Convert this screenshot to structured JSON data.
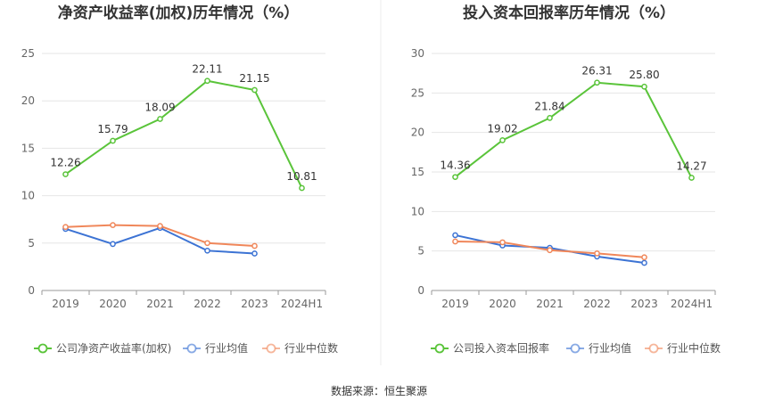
{
  "chart_data": [
    {
      "type": "line",
      "title": "净资产收益率(加权)历年情况（%）",
      "categories": [
        "2019",
        "2020",
        "2021",
        "2022",
        "2023",
        "2024H1"
      ],
      "ylim": [
        0,
        25
      ],
      "yticks": [
        0,
        5,
        10,
        15,
        20,
        25
      ],
      "grid": true,
      "legend_position": "bottom",
      "series": [
        {
          "name": "公司净资产收益率(加权)",
          "color": "#5ac43a",
          "values": [
            12.26,
            15.79,
            18.09,
            22.11,
            21.15,
            10.81
          ],
          "labels": [
            "12.26",
            "15.79",
            "18.09",
            "22.11",
            "21.15",
            "10.81"
          ]
        },
        {
          "name": "行业均值",
          "color": "#3c73d4",
          "values": [
            6.5,
            4.9,
            6.6,
            4.2,
            3.9,
            null
          ]
        },
        {
          "name": "行业中位数",
          "color": "#f0875a",
          "values": [
            6.7,
            6.9,
            6.8,
            5.0,
            4.7,
            null
          ]
        }
      ]
    },
    {
      "type": "line",
      "title": "投入资本回报率历年情况（%）",
      "categories": [
        "2019",
        "2020",
        "2021",
        "2022",
        "2023",
        "2024H1"
      ],
      "ylim": [
        0,
        30
      ],
      "yticks": [
        0,
        5,
        10,
        15,
        20,
        25,
        30
      ],
      "grid": true,
      "legend_position": "bottom",
      "series": [
        {
          "name": "公司投入资本回报率",
          "color": "#5ac43a",
          "values": [
            14.36,
            19.02,
            21.84,
            26.31,
            25.8,
            14.27
          ],
          "labels": [
            "14.36",
            "19.02",
            "21.84",
            "26.31",
            "25.80",
            "14.27"
          ]
        },
        {
          "name": "行业均值",
          "color": "#3c73d4",
          "values": [
            7.0,
            5.7,
            5.4,
            4.3,
            3.5,
            null
          ]
        },
        {
          "name": "行业中位数",
          "color": "#f0875a",
          "values": [
            6.2,
            6.1,
            5.1,
            4.7,
            4.2,
            null
          ]
        }
      ]
    }
  ],
  "source": "数据来源：恒生聚源"
}
